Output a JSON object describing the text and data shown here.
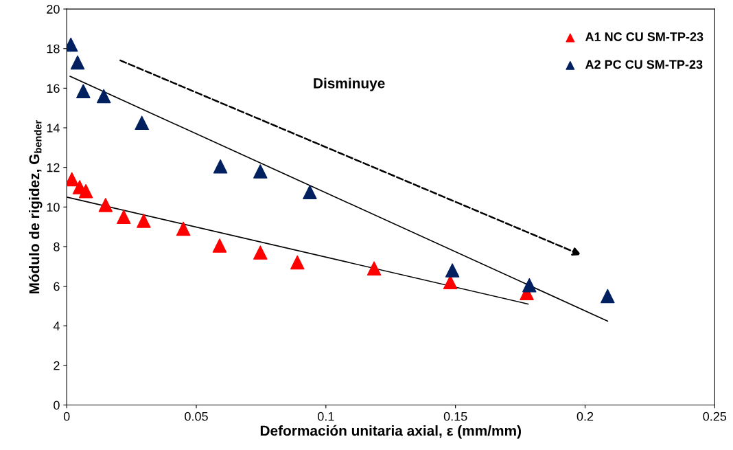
{
  "chart_data": {
    "type": "scatter",
    "xlabel": "Deformación unitaria axial, ε (mm/mm)",
    "ylabel": "Módulo de rigidez, G$_{bender}$",
    "series": [
      {
        "name": "A1 NC CU SM-TP-23",
        "color": "#ff0000",
        "marker": "triangle",
        "x": [
          0.002,
          0.005,
          0.0074,
          0.015,
          0.022,
          0.0297,
          0.045,
          0.059,
          0.0747,
          0.089,
          0.1186,
          0.148,
          0.1775
        ],
        "values": [
          11.4,
          11.0,
          10.8,
          10.1,
          9.5,
          9.3,
          8.9,
          8.05,
          7.7,
          7.2,
          6.9,
          6.2,
          5.65
        ]
      },
      {
        "name": "A2 PC CU SM-TP-23",
        "color": "#002060",
        "marker": "triangle",
        "x": [
          0.0016,
          0.0042,
          0.0064,
          0.0143,
          0.029,
          0.0593,
          0.0747,
          0.0938,
          0.1488,
          0.1785,
          0.2087
        ],
        "values": [
          18.2,
          17.3,
          15.85,
          15.6,
          14.25,
          12.05,
          11.8,
          10.75,
          6.8,
          6.05,
          5.5
        ]
      },
      {
        "color": "#000000",
        "type": "line",
        "x": [
          0.0,
          0.178
        ],
        "values": [
          10.5,
          5.1
        ]
      },
      {
        "color": "#000000",
        "type": "line",
        "x": [
          0.0013,
          0.2087
        ],
        "values": [
          16.6,
          4.24
        ]
      }
    ],
    "annotations": [
      "Disminuye"
    ],
    "xlim": [
      0,
      0.25
    ],
    "xticks": [
      0,
      0.05,
      0.1,
      0.15,
      0.2,
      0.25
    ],
    "ylim": [
      0,
      20
    ],
    "yticks": [
      0,
      2,
      4,
      6,
      8,
      10,
      12,
      14,
      16,
      18,
      20
    ],
    "legend": "top right",
    "grid": false
  }
}
